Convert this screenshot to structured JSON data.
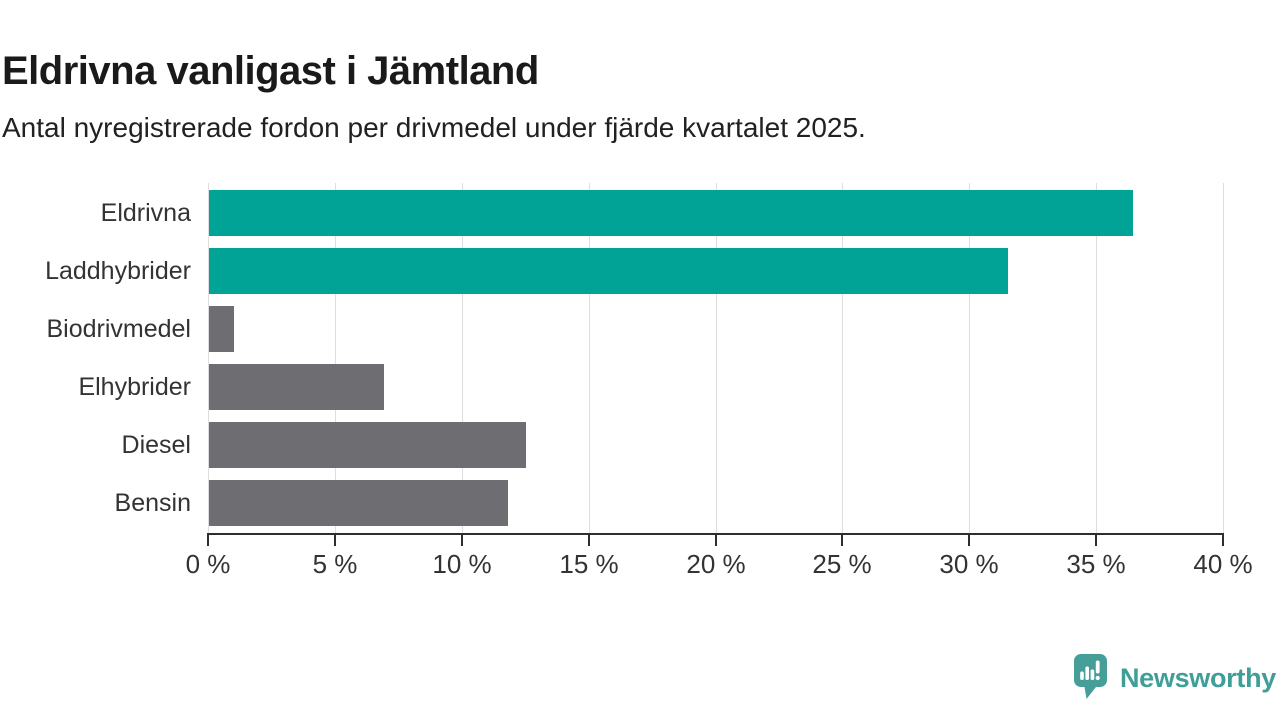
{
  "header": {
    "title": "Eldrivna vanligast i Jämtland",
    "subtitle": "Antal nyregistrerade fordon per drivmedel under fjärde kvartalet 2025."
  },
  "chart_data": {
    "type": "bar",
    "orientation": "horizontal",
    "title": "Eldrivna vanligast i Jämtland",
    "subtitle": "Antal nyregistrerade fordon per drivmedel under fjärde kvartalet 2025.",
    "categories": [
      "Eldrivna",
      "Laddhybrider",
      "Biodrivmedel",
      "Elhybrider",
      "Diesel",
      "Bensin"
    ],
    "values": [
      36.4,
      31.5,
      1.0,
      6.9,
      12.5,
      11.8
    ],
    "unit": "%",
    "xlim": [
      0,
      40
    ],
    "x_ticks": [
      0,
      5,
      10,
      15,
      20,
      25,
      30,
      35,
      40
    ],
    "x_tick_labels": [
      "0 %",
      "5 %",
      "10 %",
      "15 %",
      "20 %",
      "25 %",
      "30 %",
      "35 %",
      "40 %"
    ],
    "bar_colors": [
      "#00a396",
      "#00a396",
      "#6d6d72",
      "#6d6d72",
      "#6d6d72",
      "#6d6d72"
    ],
    "highlight_color": "#00a396",
    "default_color": "#6d6d72",
    "grid": true,
    "legend": false
  },
  "footer": {
    "brand": "Newsworthy",
    "brand_color": "#3f9e97",
    "logo_icon": "newsworthy-speech-bubble-barchart-icon"
  },
  "colors": {
    "background": "#ffffff",
    "title_text": "#1a1a1a",
    "axis_text": "#333333",
    "gridline": "#dedede",
    "axis_line": "#2e2e2e"
  }
}
